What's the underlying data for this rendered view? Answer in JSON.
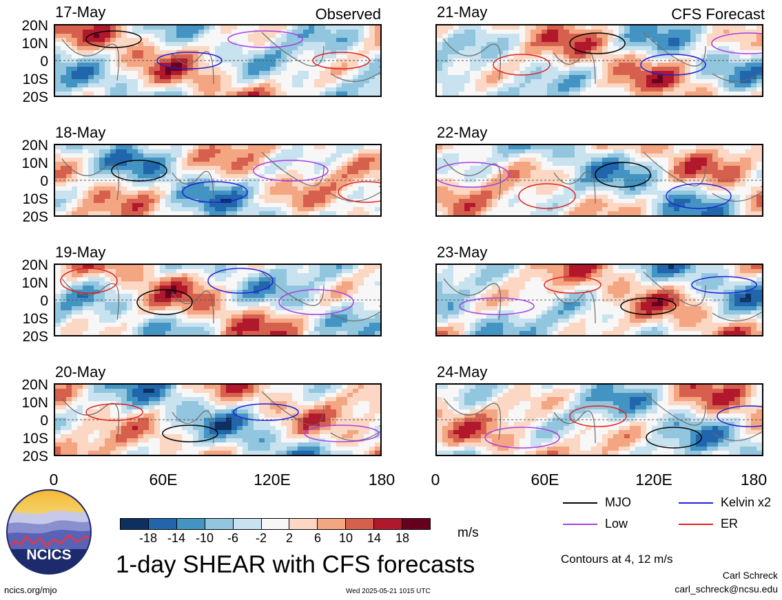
{
  "chart_data": {
    "type": "heatmap",
    "title": "1-day SHEAR with CFS forecasts",
    "units": "m/s",
    "observed_label": "Observed",
    "forecast_label": "CFS Forecast",
    "y_ticks": [
      "20N",
      "10N",
      "0",
      "10S",
      "20S"
    ],
    "x_ticks": [
      "0",
      "60E",
      "120E",
      "180"
    ],
    "ylim": [
      -20,
      20
    ],
    "xlim": [
      0,
      180
    ],
    "observed_dates": [
      "17-May",
      "18-May",
      "19-May",
      "20-May"
    ],
    "forecast_dates": [
      "21-May",
      "22-May",
      "23-May",
      "24-May"
    ],
    "colorbar": {
      "labels": [
        "-18",
        "-14",
        "-10",
        "-6",
        "-2",
        "2",
        "6",
        "10",
        "14",
        "18"
      ],
      "colors": [
        "#0d3060",
        "#2166ac",
        "#4393c3",
        "#92c5de",
        "#c9e2ef",
        "#f7f7f7",
        "#fbd7c4",
        "#f4a582",
        "#d6604d",
        "#b2182b",
        "#67001f"
      ]
    },
    "legend": [
      {
        "label": "MJO",
        "color": "#000000"
      },
      {
        "label": "Kelvin x2",
        "color": "#1f1fd6"
      },
      {
        "label": "Low",
        "color": "#a640e0"
      },
      {
        "label": "ER",
        "color": "#e01f1f"
      }
    ],
    "contour_note": "Contours at 4, 12 m/s"
  },
  "footer": {
    "site": "ncics.org/mjo",
    "timestamp": "Wed 2025-05-21 1015 UTC",
    "author": "Carl Schreck",
    "email": "carl_schreck@ncsu.edu",
    "logo_text": "NCICS"
  }
}
